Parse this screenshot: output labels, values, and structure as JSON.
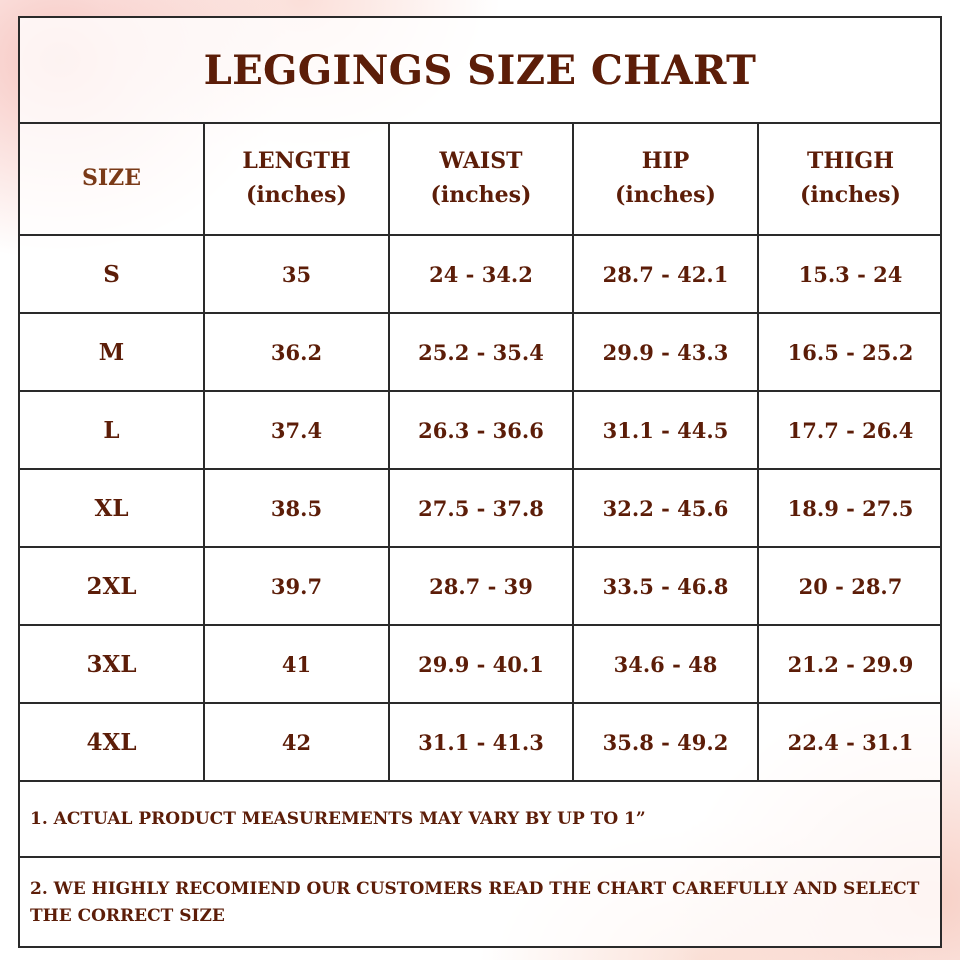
{
  "title": "LEGGINGS SIZE CHART",
  "table": {
    "header": [
      [
        "SIZE"
      ],
      [
        "LENGTH",
        "(inches)"
      ],
      [
        "WAIST",
        "(inches)"
      ],
      [
        "HIP",
        "(inches)"
      ],
      [
        "THIGH",
        "(inches)"
      ]
    ],
    "rows": [
      [
        "S",
        "35",
        "24 - 34.2",
        "28.7 - 42.1",
        "15.3 - 24"
      ],
      [
        "M",
        "36.2",
        "25.2 - 35.4",
        "29.9 - 43.3",
        "16.5 - 25.2"
      ],
      [
        "L",
        "37.4",
        "26.3 - 36.6",
        "31.1 - 44.5",
        "17.7 - 26.4"
      ],
      [
        "XL",
        "38.5",
        "27.5 - 37.8",
        "32.2 - 45.6",
        "18.9 - 27.5"
      ],
      [
        "2XL",
        "39.7",
        "28.7 - 39",
        "33.5 - 46.8",
        "20 - 28.7"
      ],
      [
        "3XL",
        "41",
        "29.9 - 40.1",
        "34.6 - 48",
        "21.2 - 29.9"
      ],
      [
        "4XL",
        "42",
        "31.1 - 41.3",
        "35.8 - 49.2",
        "22.4 - 31.1"
      ]
    ]
  },
  "notes": [
    "1. ACTUAL PRODUCT MEASUREMENTS MAY VARY BY UP TO 1”",
    "2. WE HIGHLY RECOMIEND OUR CUSTOMERS READ THE CHART CAREFULLY AND SELECT THE CORRECT SIZE"
  ]
}
